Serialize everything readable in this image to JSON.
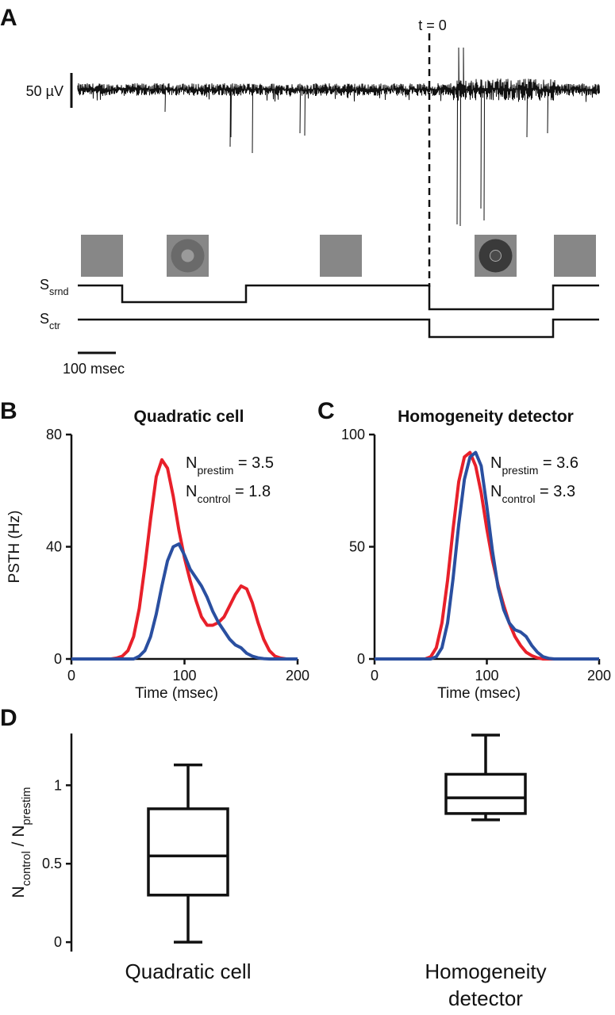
{
  "panel_a": {
    "label": "A",
    "time_marker": "t = 0",
    "voltage_scale": "50 µV",
    "time_scale": "100 msec",
    "surround_label": [
      {
        "t": "S"
      },
      {
        "t": "srnd",
        "sub": true
      }
    ],
    "center_label": [
      {
        "t": "S"
      },
      {
        "t": "ctr",
        "sub": true
      }
    ]
  },
  "chart_data": [
    {
      "type": "line",
      "panel": "B",
      "title": "Quadratic cell",
      "x_label": "Time (msec)",
      "y_label": "PSTH (Hz)",
      "x": [
        0,
        5,
        10,
        15,
        20,
        25,
        30,
        35,
        40,
        45,
        50,
        55,
        60,
        65,
        70,
        75,
        80,
        85,
        90,
        95,
        100,
        105,
        110,
        115,
        120,
        125,
        130,
        135,
        140,
        145,
        150,
        155,
        160,
        165,
        170,
        175,
        180,
        185,
        190,
        195,
        200
      ],
      "xlim": [
        0,
        200
      ],
      "xticks": [
        0,
        100,
        200
      ],
      "ylim": [
        0,
        80
      ],
      "yticks": [
        0,
        40,
        80
      ],
      "series": [
        {
          "color": "#e8202a",
          "annotation": [
            {
              "t": "N"
            },
            {
              "t": "prestim",
              "sub": true
            },
            {
              "t": " = 3.5"
            }
          ],
          "values": [
            0,
            0,
            0,
            0,
            0,
            0,
            0,
            0,
            0.3,
            1,
            3,
            8,
            18,
            33,
            50,
            65,
            71,
            68,
            58,
            46,
            36,
            28,
            21,
            15,
            12,
            12,
            13,
            15,
            19,
            23,
            26,
            25,
            20,
            13,
            7,
            3,
            1,
            0.3,
            0,
            0,
            0
          ]
        },
        {
          "color": "#2a4fa0",
          "annotation": [
            {
              "t": "N"
            },
            {
              "t": "control",
              "sub": true
            },
            {
              "t": " = 1.8"
            }
          ],
          "values": [
            0,
            0,
            0,
            0,
            0,
            0,
            0,
            0,
            0,
            0,
            0,
            0,
            1,
            3,
            8,
            16,
            26,
            35,
            40,
            41,
            37,
            32,
            29,
            26,
            22,
            17,
            13,
            10,
            7,
            5,
            4,
            2,
            1,
            0.4,
            0.1,
            0,
            0,
            0,
            0,
            0,
            0
          ]
        }
      ]
    },
    {
      "type": "line",
      "panel": "C",
      "title": "Homogeneity detector",
      "x_label": "Time (msec)",
      "x": [
        0,
        5,
        10,
        15,
        20,
        25,
        30,
        35,
        40,
        45,
        50,
        55,
        60,
        65,
        70,
        75,
        80,
        85,
        90,
        95,
        100,
        105,
        110,
        115,
        120,
        125,
        130,
        135,
        140,
        145,
        150,
        155,
        160,
        165,
        170,
        175,
        180,
        185,
        190,
        195,
        200
      ],
      "xlim": [
        0,
        200
      ],
      "xticks": [
        0,
        100,
        200
      ],
      "ylim": [
        0,
        100
      ],
      "yticks": [
        0,
        50,
        100
      ],
      "series": [
        {
          "color": "#e8202a",
          "annotation": [
            {
              "t": "N"
            },
            {
              "t": "prestim",
              "sub": true
            },
            {
              "t": " = 3.6"
            }
          ],
          "values": [
            0,
            0,
            0,
            0,
            0,
            0,
            0,
            0,
            0,
            0,
            1,
            5,
            16,
            35,
            58,
            79,
            90,
            92,
            86,
            74,
            58,
            44,
            33,
            24,
            16,
            10,
            6,
            3,
            1.5,
            0.5,
            0,
            0,
            0,
            0,
            0,
            0,
            0,
            0,
            0,
            0,
            0
          ]
        },
        {
          "color": "#2a4fa0",
          "annotation": [
            {
              "t": "N"
            },
            {
              "t": "control",
              "sub": true
            },
            {
              "t": " = 3.3"
            }
          ],
          "values": [
            0,
            0,
            0,
            0,
            0,
            0,
            0,
            0,
            0,
            0,
            0,
            1,
            5,
            16,
            36,
            60,
            80,
            90,
            92,
            86,
            68,
            48,
            32,
            22,
            16,
            13,
            12,
            10,
            6,
            3,
            1,
            0.3,
            0,
            0,
            0,
            0,
            0,
            0,
            0,
            0,
            0
          ]
        }
      ]
    },
    {
      "type": "box",
      "panel": "D",
      "y_label": [
        {
          "t": "N"
        },
        {
          "t": "control",
          "sub": true
        },
        {
          "t": " / N"
        },
        {
          "t": "prestim",
          "sub": true
        }
      ],
      "categories": [
        "Quadratic cell",
        "Homogeneity detector"
      ],
      "ylim": [
        -0.06,
        1.33
      ],
      "yticks": [
        0,
        0.5,
        1
      ],
      "boxes": [
        {
          "whislo": 0,
          "q1": 0.3,
          "med": 0.55,
          "q3": 0.85,
          "whishi": 1.13
        },
        {
          "whislo": 0.78,
          "q1": 0.82,
          "med": 0.92,
          "q3": 1.07,
          "whishi": 1.32
        }
      ]
    }
  ]
}
